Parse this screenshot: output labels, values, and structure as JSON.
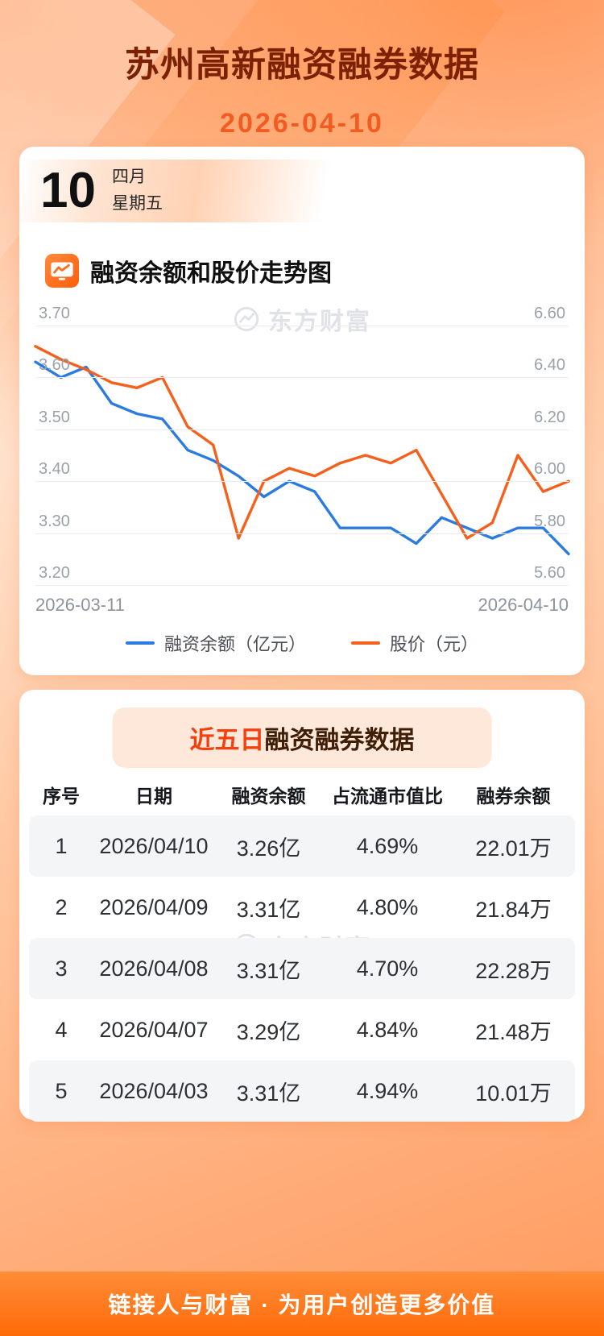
{
  "header": {
    "title": "苏州高新融资融券数据",
    "date": "2026-04-10"
  },
  "date_badge": {
    "day": "10",
    "month": "四月",
    "weekday": "星期五"
  },
  "chart_section": {
    "heading": "融资余额和股价走势图"
  },
  "watermark": {
    "text": "东方财富"
  },
  "chart_data": {
    "type": "line",
    "title": "融资余额和股价走势图",
    "grid": true,
    "legend_position": "bottom",
    "x_range": [
      "2026-03-11",
      "2026-04-10"
    ],
    "left_axis": {
      "label": "融资余额（亿元）",
      "min": 3.2,
      "max": 3.7,
      "ticks": [
        "3.70",
        "3.60",
        "3.50",
        "3.40",
        "3.30",
        "3.20"
      ]
    },
    "right_axis": {
      "label": "股价（元）",
      "min": 5.6,
      "max": 6.6,
      "ticks": [
        "6.60",
        "6.40",
        "6.20",
        "6.00",
        "5.80",
        "5.60"
      ]
    },
    "series": [
      {
        "name": "融资余额（亿元）",
        "axis": "left",
        "color": "#2b7be0",
        "values": [
          3.63,
          3.6,
          3.62,
          3.55,
          3.53,
          3.52,
          3.46,
          3.44,
          3.41,
          3.37,
          3.4,
          3.38,
          3.31,
          3.31,
          3.31,
          3.28,
          3.33,
          3.31,
          3.29,
          3.31,
          3.31,
          3.26
        ]
      },
      {
        "name": "股价（元）",
        "axis": "right",
        "color": "#f5611d",
        "values": [
          6.52,
          6.47,
          6.43,
          6.38,
          6.36,
          6.4,
          6.21,
          6.14,
          5.78,
          6.0,
          6.05,
          6.02,
          6.07,
          6.1,
          6.07,
          6.12,
          5.95,
          5.78,
          5.84,
          6.1,
          5.96,
          6.0
        ]
      }
    ]
  },
  "table_section": {
    "title_highlight": "近五日",
    "title_rest": "融资融券数据",
    "columns": [
      "序号",
      "日期",
      "融资余额",
      "占流通市值比",
      "融券余额"
    ],
    "rows": [
      [
        "1",
        "2026/04/10",
        "3.26亿",
        "4.69%",
        "22.01万"
      ],
      [
        "2",
        "2026/04/09",
        "3.31亿",
        "4.80%",
        "21.84万"
      ],
      [
        "3",
        "2026/04/08",
        "3.31亿",
        "4.70%",
        "22.28万"
      ],
      [
        "4",
        "2026/04/07",
        "3.29亿",
        "4.84%",
        "21.48万"
      ],
      [
        "5",
        "2026/04/03",
        "3.31亿",
        "4.94%",
        "10.01万"
      ]
    ]
  },
  "footer": {
    "text": "链接人与财富 · 为用户创造更多价值"
  },
  "colors": {
    "title_brown": "#7c2104",
    "date_orange": "#f25b22",
    "accent_orange": "#ff6a15",
    "highlight_red": "#f4400e",
    "line_blue": "#2b7be0",
    "line_orange": "#f5611d",
    "alt_row_gray": "#f4f5f7"
  }
}
